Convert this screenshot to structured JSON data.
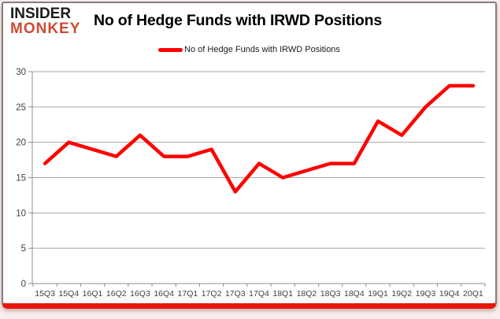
{
  "logo": {
    "line1": "INSIDER",
    "line2": "MONKEY"
  },
  "header": {
    "title": "No of Hedge Funds with IRWD Positions"
  },
  "legend": {
    "label": "No of Hedge Funds with IRWD Positions"
  },
  "colors": {
    "series": "#fe0100",
    "logo_top": "#1b1b1b",
    "logo_bottom": "#d14a32",
    "card_border": "#7f7f7f",
    "card_bottom_bar": "#e8150d",
    "page_bg": "#f9edeb",
    "gridline": "#a6a6a6",
    "axis": "#8c8c8c",
    "tick_label": "#3f3f3f"
  },
  "chart_data": {
    "type": "line",
    "title": "No of Hedge Funds with IRWD Positions",
    "categories": [
      "15Q3",
      "15Q4",
      "16Q1",
      "16Q2",
      "16Q3",
      "16Q4",
      "17Q1",
      "17Q2",
      "17Q3",
      "17Q4",
      "18Q1",
      "18Q2",
      "18Q3",
      "18Q4",
      "19Q1",
      "19Q2",
      "19Q3",
      "19Q4",
      "20Q1"
    ],
    "series": [
      {
        "name": "No of Hedge Funds with IRWD Positions",
        "color": "#fe0100",
        "values": [
          17,
          20,
          19,
          18,
          21,
          18,
          18,
          19,
          13,
          17,
          15,
          16,
          17,
          17,
          23,
          21,
          25,
          28,
          28
        ]
      }
    ],
    "ylim": [
      0,
      30
    ],
    "yticks": [
      0,
      5,
      10,
      15,
      20,
      25,
      30
    ],
    "xlabel": "",
    "ylabel": "",
    "grid": "horizontal",
    "legend_position": "top-center"
  }
}
